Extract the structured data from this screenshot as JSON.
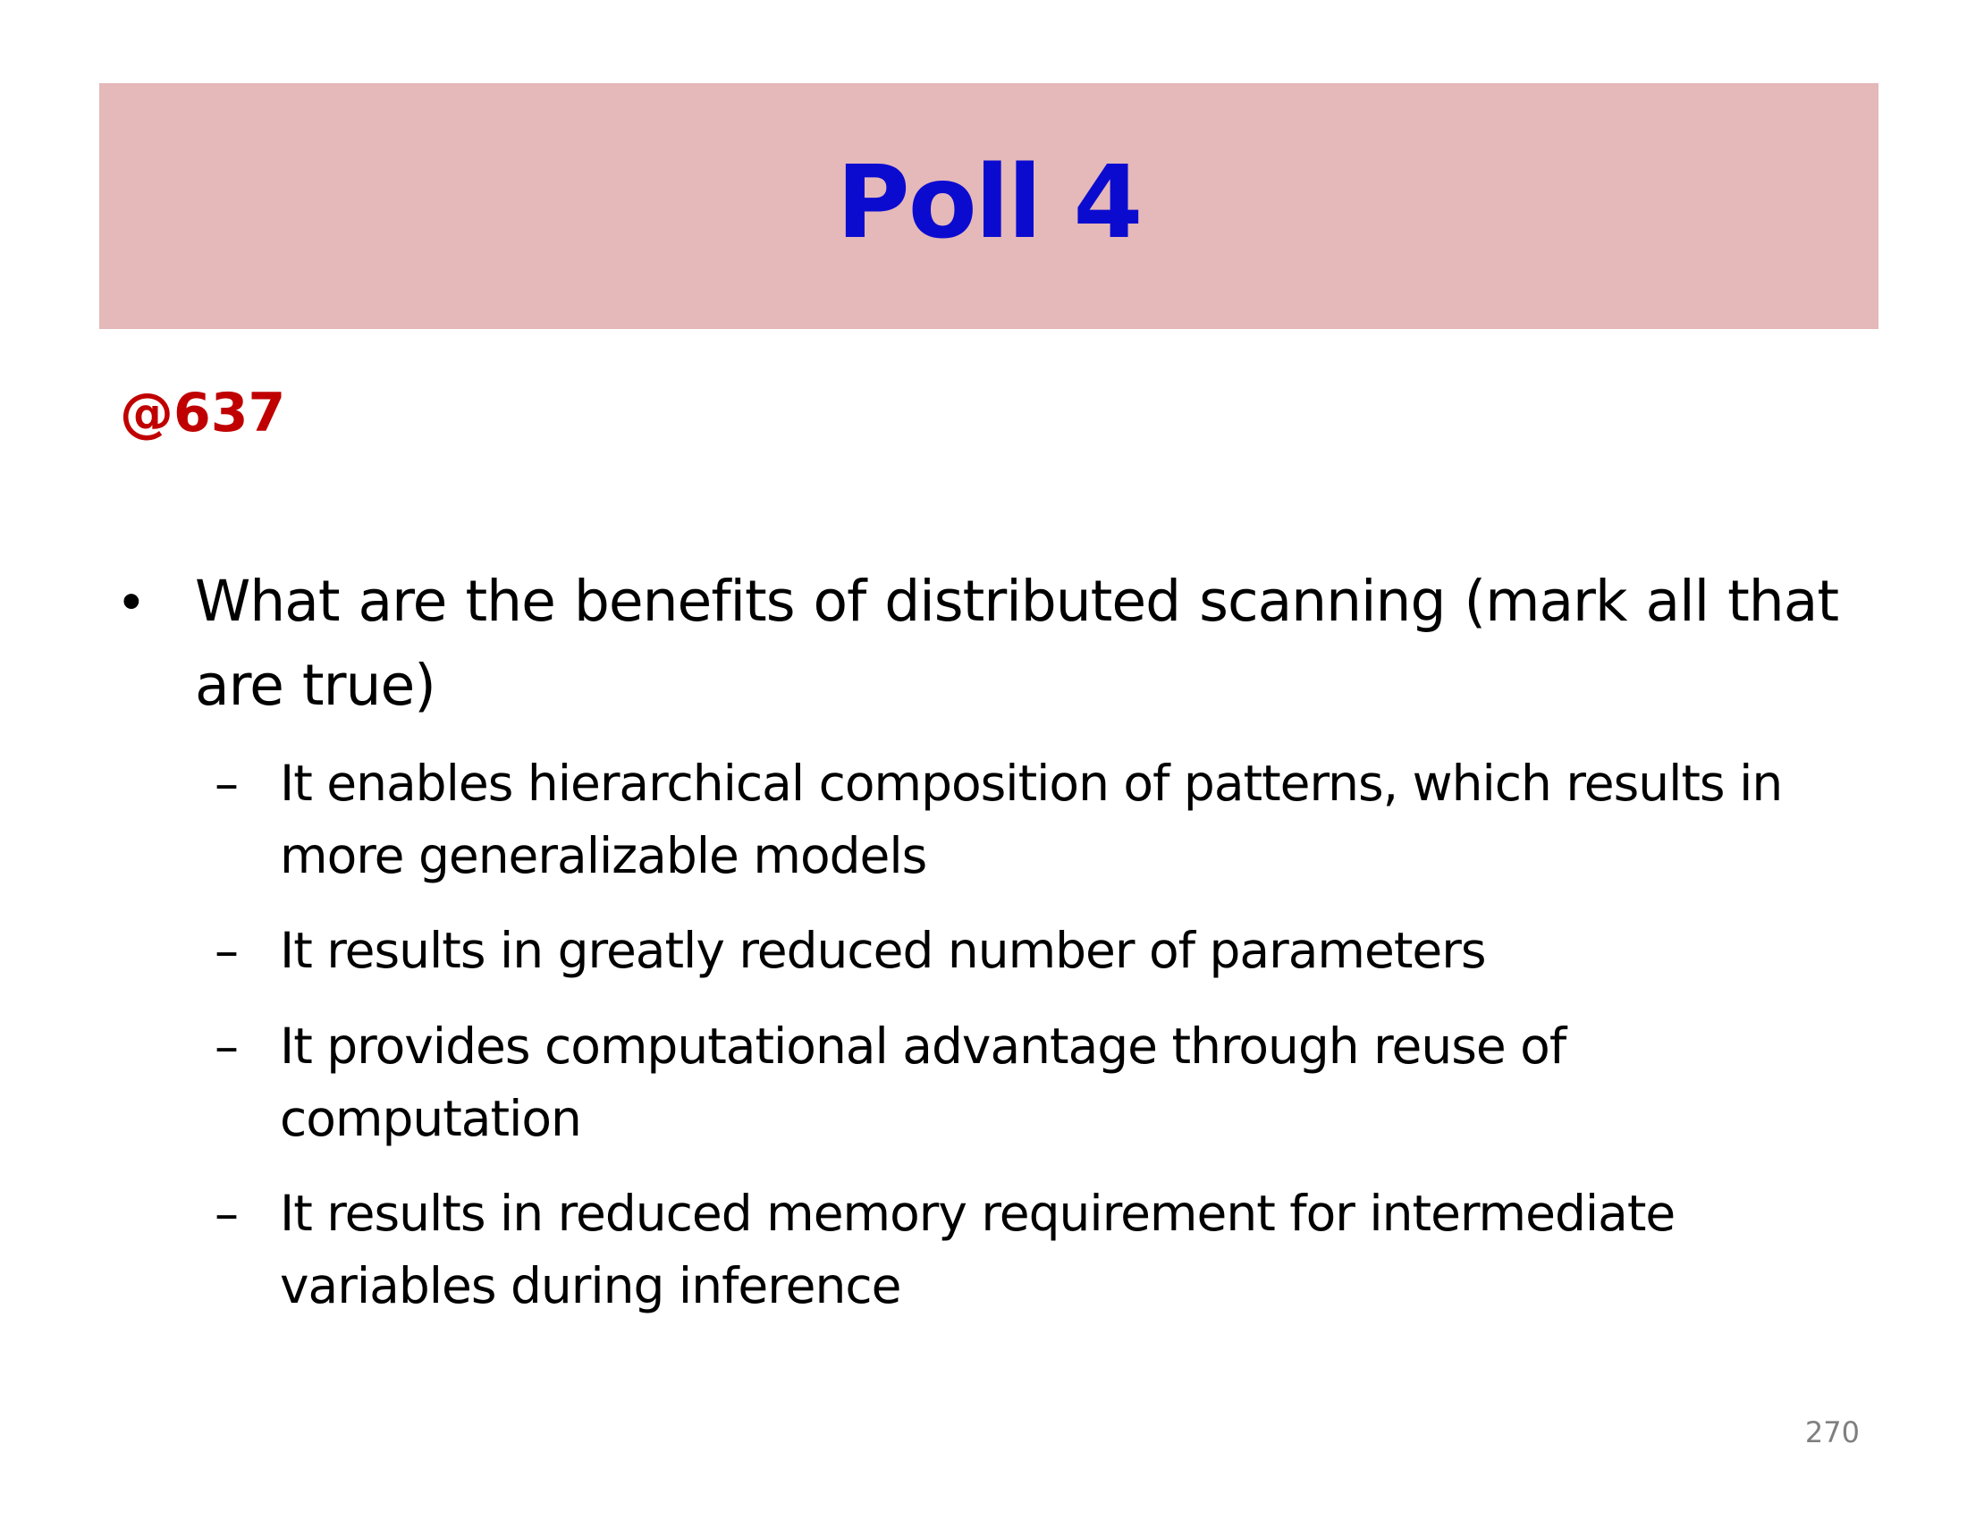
{
  "slide": {
    "title": "Poll 4",
    "poll_ref": "@637",
    "question": {
      "bullet": "•",
      "text": "What are the benefits of distributed scanning (mark all that are true)"
    },
    "options": [
      {
        "marker": "–",
        "text": "It enables hierarchical composition of patterns, which results in more generalizable models"
      },
      {
        "marker": "–",
        "text": "It results in greatly reduced number of parameters"
      },
      {
        "marker": "–",
        "text": "It provides computational advantage through reuse of computation"
      },
      {
        "marker": "–",
        "text": "It results in reduced memory requirement for intermediate variables during inference"
      }
    ],
    "page_number": "270"
  },
  "colors": {
    "banner_background": "#e5b8b9",
    "title": "#0b0bd0",
    "poll_ref": "#c00000",
    "body_text": "#000000",
    "page_number": "#7f7f7f"
  }
}
